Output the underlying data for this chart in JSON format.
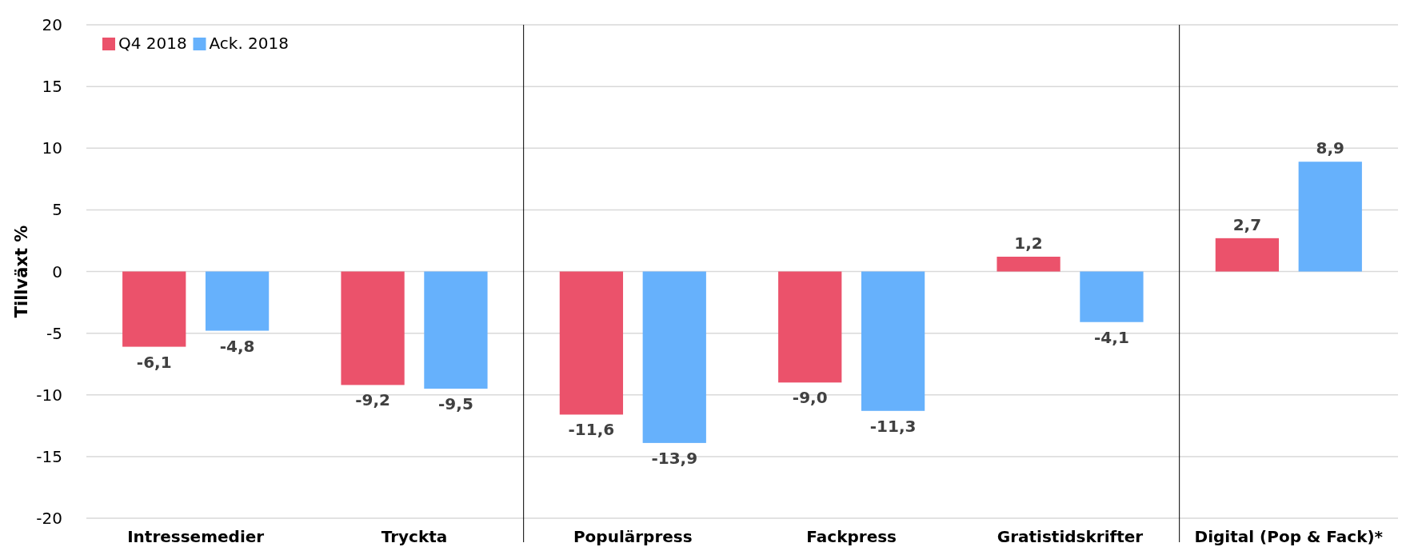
{
  "chart_data": {
    "type": "bar",
    "ylabel": "Tillväxt %",
    "categories": [
      "Intressemedier",
      "Tryckta",
      "Populärpress",
      "Fackpress",
      "Gratistidskrifter",
      "Digital (Pop & Fack)*"
    ],
    "series": [
      {
        "name": "Q4 2018",
        "color": "#eb526b",
        "values": [
          -6.1,
          -9.2,
          -11.6,
          -9.0,
          1.2,
          2.7
        ]
      },
      {
        "name": "Ack. 2018",
        "color": "#66b1fc",
        "values": [
          -4.8,
          -9.5,
          -13.9,
          -11.3,
          -4.1,
          8.9
        ]
      }
    ],
    "value_labels": [
      [
        "-6,1",
        "-9,2",
        "-11,6",
        "-9,0",
        "1,2",
        "2,7"
      ],
      [
        "-4,8",
        "-9,5",
        "-13,9",
        "-11,3",
        "-4,1",
        "8,9"
      ]
    ],
    "ylim": [
      -20,
      20
    ],
    "yticks": [
      -20,
      -15,
      -10,
      -5,
      0,
      5,
      10,
      15,
      20
    ],
    "grid": "y",
    "legend": "top left"
  }
}
